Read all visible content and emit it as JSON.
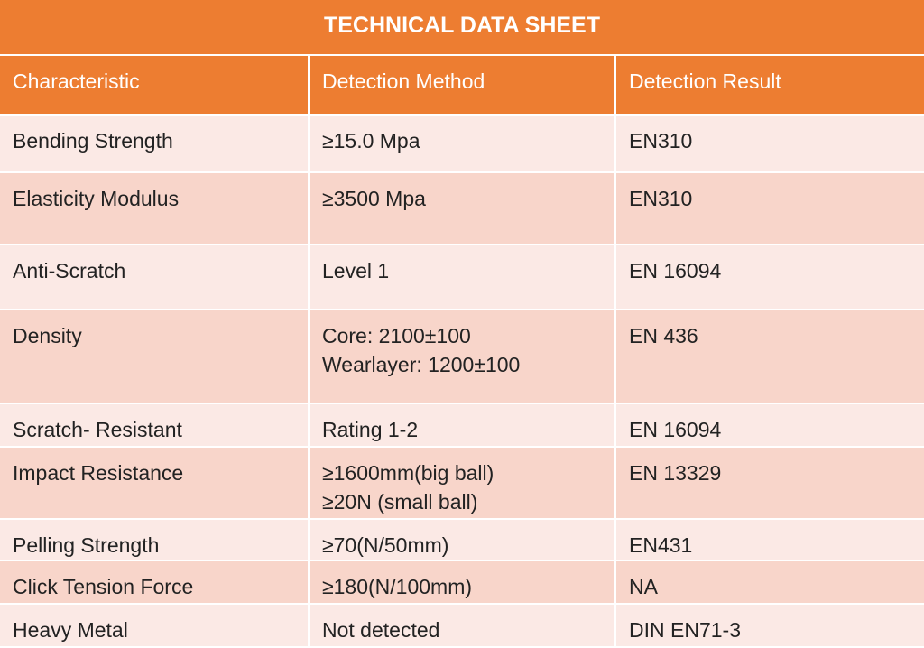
{
  "title": "TECHNICAL DATA SHEET",
  "table": {
    "header": [
      "Characteristic",
      "Detection Method",
      "Detection Result"
    ],
    "rows": [
      [
        "Bending Strength",
        "≥15.0 Mpa",
        "EN310"
      ],
      [
        "Elasticity Modulus",
        "≥3500 Mpa",
        "EN310"
      ],
      [
        "Anti-Scratch",
        "Level 1",
        "EN 16094"
      ],
      [
        "Density",
        "Core: 2100±100\nWearlayer: 1200±100",
        "EN 436"
      ],
      [
        "Scratch- Resistant",
        "Rating 1-2",
        "EN 16094"
      ],
      [
        "Impact Resistance",
        "≥1600mm(big ball)\n≥20N (small ball)",
        "EN 13329"
      ],
      [
        "Pelling Strength",
        "≥70(N/50mm)",
        "EN431"
      ],
      [
        "Click Tension Force",
        "≥180(N/100mm)",
        "NA"
      ],
      [
        "Heavy Metal",
        "Not detected",
        "DIN EN71-3"
      ]
    ]
  }
}
